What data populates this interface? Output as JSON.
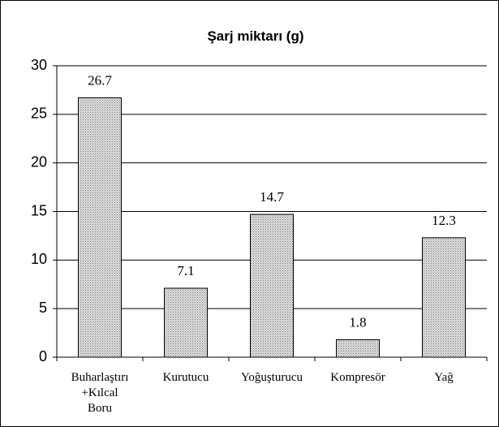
{
  "chart_data": {
    "type": "bar",
    "title": "Şarj miktarı (g)",
    "categories": [
      "Buharlaştırı\n+Kılcal\nBoru",
      "Kurutucu",
      "Yoğuşturucu",
      "Kompresör",
      "Yağ"
    ],
    "values": [
      26.7,
      7.1,
      14.7,
      1.8,
      12.3
    ],
    "color": "#c0c0c0",
    "ylim": [
      0,
      30
    ],
    "yticks": [
      0,
      5,
      10,
      15,
      20,
      25,
      30
    ],
    "grid": true
  }
}
